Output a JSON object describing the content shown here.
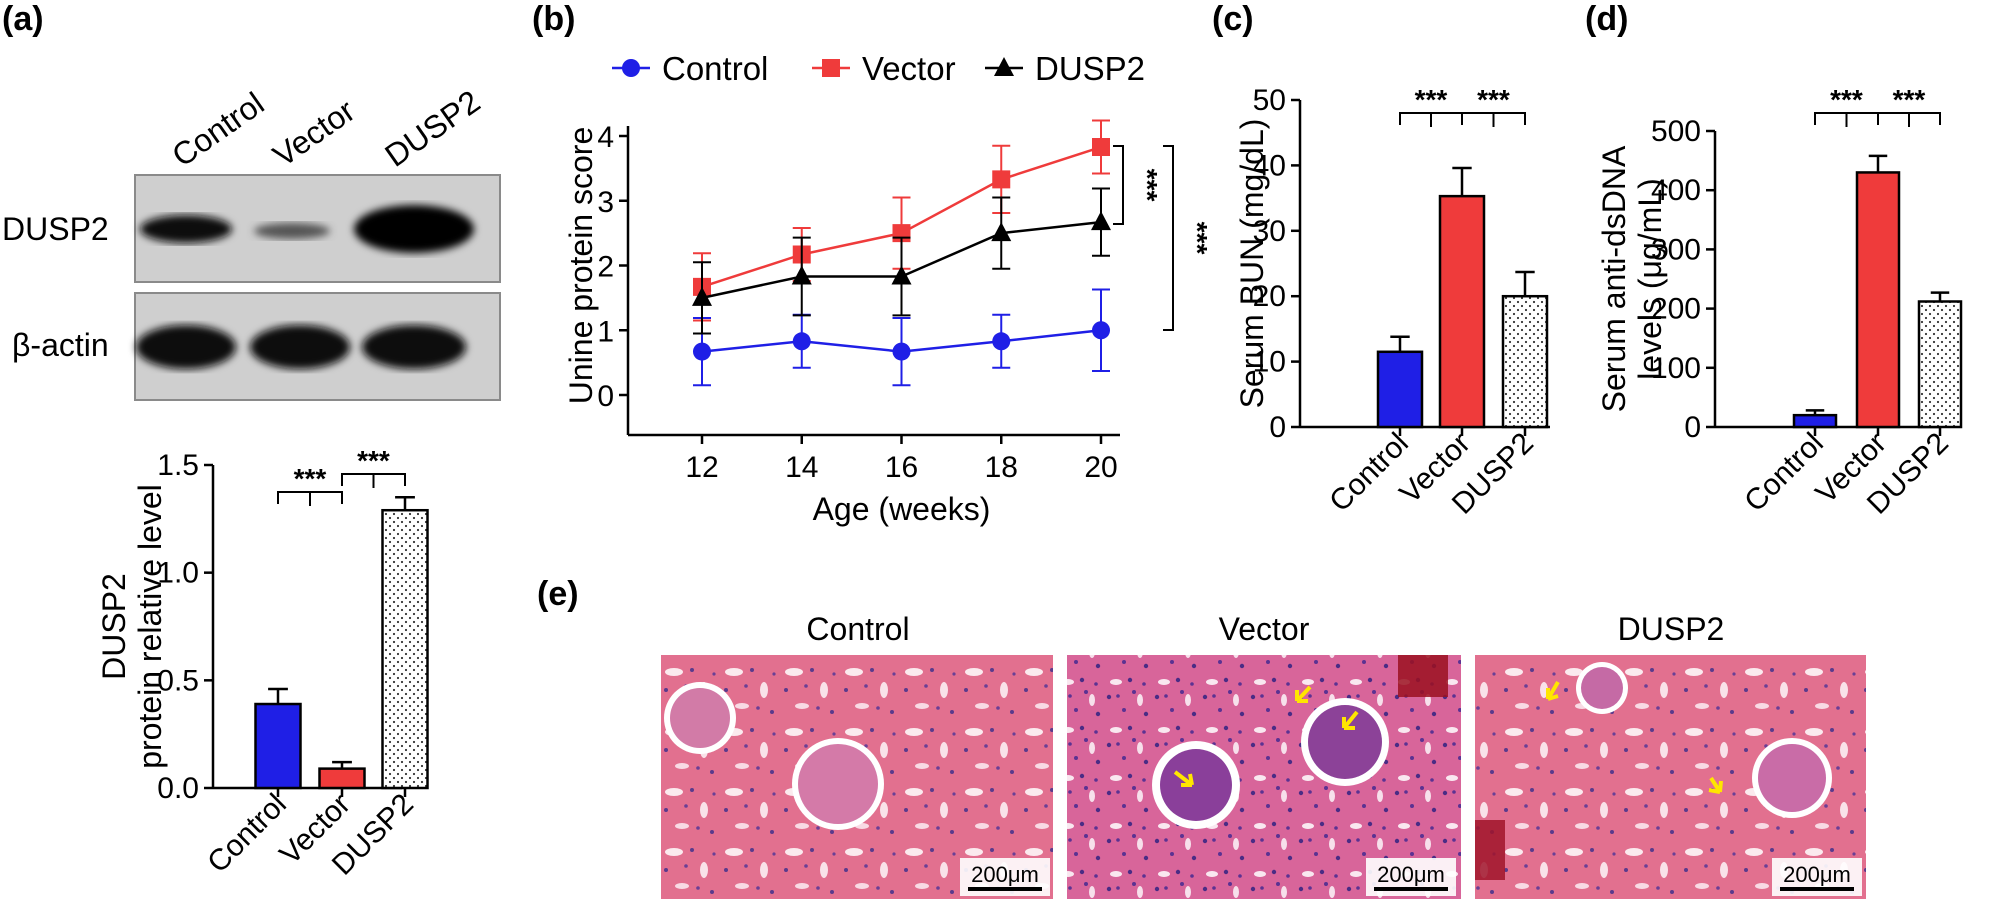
{
  "panels": {
    "a": "(a)",
    "b": "(b)",
    "c": "(c)",
    "d": "(d)",
    "e": "(e)"
  },
  "colors": {
    "control": "#1f1fe6",
    "vector": "#ef3b3b",
    "dusp2": "#000000",
    "arrow": "#ffe600"
  },
  "blot": {
    "lanes": [
      "Control",
      "Vector",
      "DUSP2"
    ],
    "rows": [
      "DUSP2",
      "β-actin"
    ]
  },
  "significance": "***",
  "chart_data": [
    {
      "id": "a",
      "type": "bar",
      "categories": [
        "Control",
        "Vector",
        "DUSP2"
      ],
      "values": [
        0.39,
        0.09,
        1.29
      ],
      "errors": [
        0.07,
        0.03,
        0.06
      ],
      "ylabel_line1": "DUSP2",
      "ylabel_line2": "protein relative level",
      "ylim": [
        0,
        1.5
      ],
      "yticks": [
        "0.0",
        "0.5",
        "1.0",
        "1.5"
      ],
      "ytick_values": [
        0,
        0.5,
        1.0,
        1.5
      ],
      "comparisons": [
        [
          "Control",
          "Vector"
        ],
        [
          "Vector",
          "DUSP2"
        ]
      ]
    },
    {
      "id": "b",
      "type": "line",
      "x": [
        12,
        14,
        16,
        18,
        20
      ],
      "xticks": [
        "12",
        "14",
        "16",
        "18",
        "20"
      ],
      "xlabel": "Age (weeks)",
      "ylabel": "Unine protein score",
      "ylim": [
        0,
        4
      ],
      "yticks": [
        "0",
        "1",
        "2",
        "3",
        "4"
      ],
      "ytick_values": [
        0,
        1,
        2,
        3,
        4
      ],
      "legend": "top",
      "series": [
        {
          "name": "Control",
          "values": [
            0.67,
            0.83,
            0.67,
            0.83,
            1.0
          ],
          "errors": [
            0.52,
            0.41,
            0.52,
            0.41,
            0.63
          ]
        },
        {
          "name": "Vector",
          "values": [
            1.67,
            2.17,
            2.5,
            3.33,
            3.83
          ],
          "errors": [
            0.52,
            0.41,
            0.55,
            0.52,
            0.41
          ]
        },
        {
          "name": "DUSP2",
          "values": [
            1.5,
            1.83,
            1.83,
            2.5,
            2.67
          ],
          "errors": [
            0.55,
            0.6,
            0.6,
            0.55,
            0.52
          ]
        }
      ]
    },
    {
      "id": "c",
      "type": "bar",
      "categories": [
        "Control",
        "Vector",
        "DUSP2"
      ],
      "values": [
        11.5,
        35.3,
        20.0
      ],
      "errors": [
        2.3,
        4.3,
        3.7
      ],
      "ylabel": "Serum BUN (mg/dL)",
      "ylim": [
        0,
        50
      ],
      "yticks": [
        "0",
        "10",
        "20",
        "30",
        "40",
        "50"
      ],
      "ytick_values": [
        0,
        10,
        20,
        30,
        40,
        50
      ],
      "comparisons": [
        [
          "Control",
          "Vector"
        ],
        [
          "Vector",
          "DUSP2"
        ]
      ]
    },
    {
      "id": "d",
      "type": "bar",
      "categories": [
        "Control",
        "Vector",
        "DUSP2"
      ],
      "values": [
        20,
        430,
        212
      ],
      "errors": [
        8,
        28,
        15
      ],
      "ylabel_line1": "Serum anti-dsDNA",
      "ylabel_line2": "levels (μg/mL)",
      "ylim": [
        0,
        500
      ],
      "yticks": [
        "0",
        "100",
        "200",
        "300",
        "400",
        "500"
      ],
      "ytick_values": [
        0,
        100,
        200,
        300,
        400,
        500
      ],
      "comparisons": [
        [
          "Control",
          "Vector"
        ],
        [
          "Vector",
          "DUSP2"
        ]
      ]
    }
  ],
  "histology": {
    "titles": [
      "Control",
      "Vector",
      "DUSP2"
    ],
    "scalebar": "200μm"
  }
}
